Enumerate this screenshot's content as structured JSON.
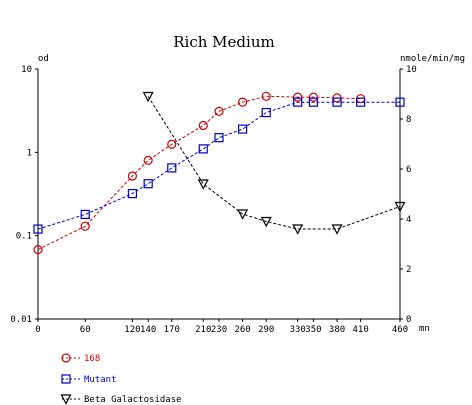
{
  "chart_data": {
    "type": "line",
    "title": "Rich Medium",
    "y_left_label": "od",
    "y_right_label": "nmole/min/mg",
    "x_unit": "mn",
    "x_ticks": [
      0,
      60,
      120,
      140,
      170,
      210,
      230,
      260,
      290,
      330,
      350,
      380,
      410,
      460
    ],
    "y_left_scale": "log",
    "y_left_lim": [
      0.01,
      10
    ],
    "y_left_ticks": [
      0.01,
      0.1,
      1,
      10
    ],
    "y_left_tick_labels": [
      "0.01",
      "0.1",
      "1",
      "10"
    ],
    "y_right_lim": [
      0,
      10
    ],
    "y_right_ticks": [
      0,
      2,
      4,
      6,
      8,
      10
    ],
    "x_lim": [
      0,
      460
    ],
    "grid": false,
    "legend_position": "bottom-left",
    "series": [
      {
        "name": "168",
        "axis": "left",
        "color": "#cc0000",
        "marker": "circle",
        "x": [
          0,
          60,
          120,
          140,
          170,
          210,
          230,
          260,
          290,
          330,
          350,
          380,
          410
        ],
        "y": [
          0.068,
          0.13,
          0.52,
          0.8,
          1.25,
          2.1,
          3.1,
          4.0,
          4.7,
          4.6,
          4.6,
          4.5,
          4.4
        ]
      },
      {
        "name": "Mutant",
        "axis": "left",
        "color": "#0000cc",
        "marker": "square",
        "x": [
          0,
          60,
          120,
          140,
          170,
          210,
          230,
          260,
          290,
          330,
          350,
          380,
          410,
          460
        ],
        "y": [
          0.12,
          0.18,
          0.32,
          0.42,
          0.65,
          1.1,
          1.5,
          1.9,
          3.0,
          4.0,
          4.0,
          4.0,
          4.0,
          4.0
        ]
      },
      {
        "name": "Beta Galactosidase",
        "axis": "right",
        "color": "#000000",
        "marker": "triangle-down",
        "x": [
          140,
          210,
          260,
          290,
          330,
          380,
          460
        ],
        "y": [
          8.9,
          5.4,
          4.2,
          3.9,
          3.6,
          3.6,
          4.5
        ]
      }
    ]
  }
}
